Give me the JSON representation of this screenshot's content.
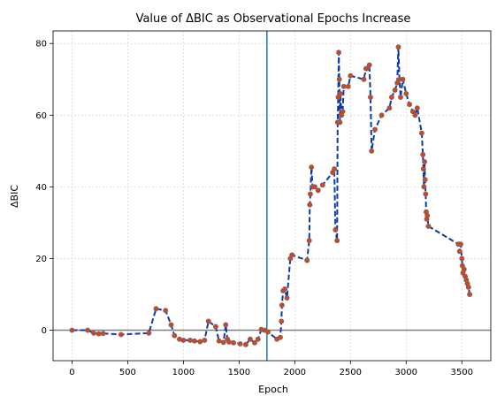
{
  "chart_data": {
    "type": "line",
    "title": "Value of ΔBIC as Observational Epochs Increase",
    "xlabel": "Epoch",
    "ylabel": "ΔBIC",
    "xlim": [
      -170,
      3760
    ],
    "ylim": [
      -8.5,
      83.5
    ],
    "xticks": [
      0,
      500,
      1000,
      1500,
      2000,
      2500,
      3000,
      3500
    ],
    "yticks": [
      0,
      20,
      40,
      60,
      80
    ],
    "grid": true,
    "reference_lines": {
      "vertical_x": 1750,
      "horizontal_y": 0
    },
    "colors": {
      "line": "#0d3aa8",
      "marker_fill": "#d2451e",
      "marker_edge": "#6a6a6a",
      "vline": "#1f77b4",
      "hline": "#808080"
    },
    "series": [
      {
        "x": [
          0,
          140,
          195,
          240,
          280,
          440,
          690,
          755,
          840,
          890,
          920,
          965,
          1000,
          1060,
          1100,
          1150,
          1190,
          1225,
          1290,
          1320,
          1360,
          1380,
          1395,
          1410,
          1450,
          1510,
          1560,
          1600,
          1640,
          1670,
          1700,
          1730,
          1760,
          1840,
          1870,
          1880,
          1885,
          1895,
          1910,
          1930,
          1960,
          1975,
          2110,
          2130,
          2135,
          2140,
          2150,
          2160,
          2180,
          2210,
          2250,
          2340,
          2355,
          2365,
          2380,
          2385,
          2390,
          2395,
          2400,
          2405,
          2410,
          2420,
          2430,
          2440,
          2480,
          2500,
          2620,
          2640,
          2650,
          2670,
          2680,
          2690,
          2720,
          2780,
          2850,
          2870,
          2900,
          2920,
          2930,
          2940,
          2950,
          2970,
          3000,
          3030,
          3060,
          3080,
          3100,
          3140,
          3150,
          3155,
          3160,
          3165,
          3170,
          3175,
          3180,
          3185,
          3190,
          3200,
          3470,
          3480,
          3490,
          3500,
          3505,
          3510,
          3520,
          3530,
          3540,
          3550,
          3560,
          3570
        ],
        "y": [
          0,
          0,
          -0.8,
          -1,
          -0.9,
          -1.2,
          -0.8,
          6,
          5.5,
          1.5,
          -1.5,
          -2.5,
          -2.8,
          -2.8,
          -3,
          -3.2,
          -2.8,
          2.5,
          1,
          -3,
          -3.4,
          1.5,
          -2.5,
          -3.3,
          -3.5,
          -3.8,
          -4,
          -2.5,
          -3.5,
          -2.5,
          0.2,
          0,
          -0.5,
          -2.5,
          -2,
          2.5,
          7,
          11,
          11.5,
          9,
          20,
          21,
          19.5,
          25,
          35,
          38,
          45.5,
          40,
          40,
          39,
          40.5,
          44,
          45,
          28,
          25,
          58,
          65,
          77.5,
          70,
          58,
          66,
          60,
          61,
          68,
          68,
          71,
          70,
          73,
          73,
          74,
          65,
          50,
          56,
          60,
          62,
          65,
          67,
          69,
          79,
          70,
          65,
          70,
          66,
          63,
          61,
          60,
          62,
          55,
          49,
          45,
          40,
          47,
          42,
          38,
          33,
          31,
          32,
          29,
          24,
          22,
          24,
          20,
          18,
          16,
          17,
          15,
          14,
          13,
          12,
          10
        ]
      }
    ]
  }
}
